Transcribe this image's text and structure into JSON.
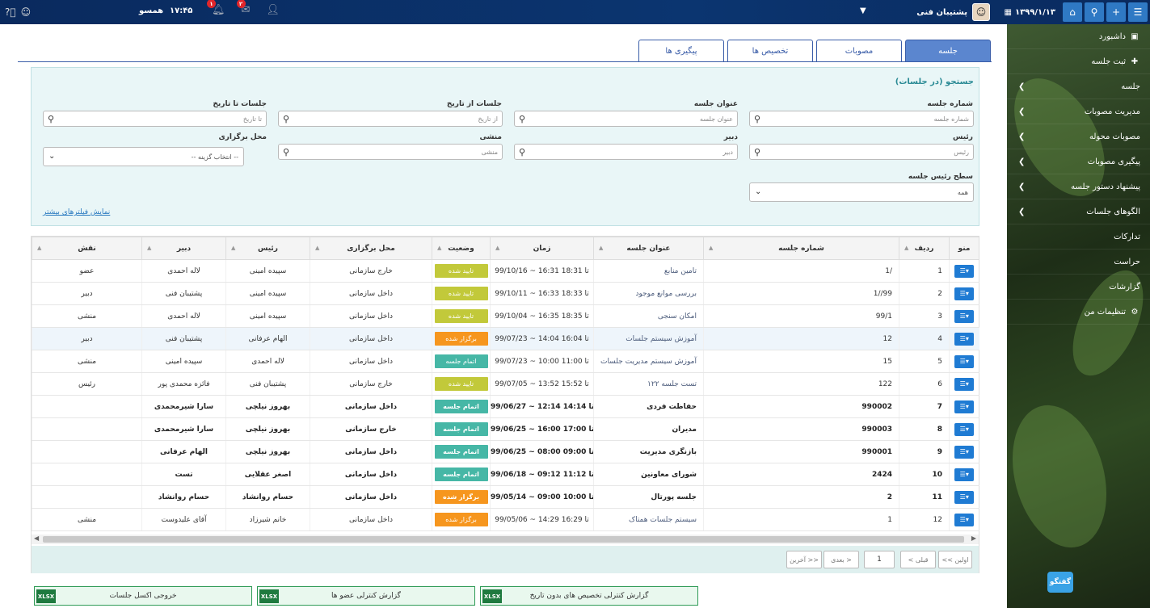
{
  "topbar": {
    "date": "۱۳۹۹/۱/۱۳",
    "user_name": "پشتیبان فنی",
    "time": "۱۷:۴۵",
    "workspace": "همسو",
    "notif_count": "۲",
    "alert_count": "۱"
  },
  "sidebar": {
    "items": [
      {
        "label": "داشبورد",
        "icon": "dashboard-icon"
      },
      {
        "label": "ثبت جلسه",
        "icon": "plus-icon"
      },
      {
        "label": "جلسه"
      },
      {
        "label": "مدیریت مصوبات"
      },
      {
        "label": "مصوبات محوله"
      },
      {
        "label": "پیگیری مصوبات"
      },
      {
        "label": "پیشنهاد دستور جلسه"
      },
      {
        "label": "الگوهای جلسات"
      },
      {
        "label": "تدارکات"
      },
      {
        "label": "حراست"
      },
      {
        "label": "گزارشات"
      },
      {
        "label": "تنظیمات من",
        "icon": "gears-icon"
      }
    ]
  },
  "chat_label": "گفتگو",
  "tabs": [
    "جلسه",
    "مصوبات",
    "تخصیص ها",
    "پیگیری ها"
  ],
  "search": {
    "title": "جستجو (در جلسات)",
    "meeting_number": {
      "label": "شماره جلسه",
      "placeholder": "شماره جلسه"
    },
    "meeting_title": {
      "label": "عنوان جلسه",
      "placeholder": "عنوان جلسه"
    },
    "from_date": {
      "label": "جلسات از تاریخ",
      "placeholder": "از تاریخ"
    },
    "to_date": {
      "label": "جلسات تا تاریخ",
      "placeholder": "تا تاریخ"
    },
    "chair": {
      "label": "رئیس",
      "placeholder": "رئیس"
    },
    "secretary": {
      "label": "دبیر",
      "placeholder": "دبیر"
    },
    "clerk": {
      "label": "منشی",
      "placeholder": "منشی"
    },
    "venue": {
      "label": "محل برگزاری",
      "value": "-- انتخاب گزینه --"
    },
    "chair_level": {
      "label": "سطح رئیس جلسه",
      "value": "همه"
    },
    "more_filters": "نمایش فیلترهای بیشتر"
  },
  "grid": {
    "headers": [
      "منو",
      "ردیف",
      "شماره جلسه",
      "عنوان جلسه",
      "زمان",
      "وضعیت",
      "محل برگزاری",
      "رئیس",
      "دبیر",
      "نقش"
    ],
    "rows": [
      {
        "row": "1",
        "num": "1/",
        "title": "تامین منابع",
        "time": "99/10/16 ~ 16:31 تا 18:31",
        "status": "تایید شده",
        "venue": "خارج سازمانی",
        "chair": "سپیده امینی",
        "secretary": "لاله احمدی",
        "role": "عضو",
        "bold": false
      },
      {
        "row": "2",
        "num": "1//99",
        "title": "بررسی موانع موجود",
        "time": "99/10/11 ~ 16:33 تا 18:33",
        "status": "تایید شده",
        "venue": "داخل سازمانی",
        "chair": "سپیده امینی",
        "secretary": "پشتیبان فنی",
        "role": "دبیر",
        "bold": false
      },
      {
        "row": "3",
        "num": "99/1",
        "title": "امکان سنجی",
        "time": "99/10/04 ~ 16:35 تا 18:35",
        "status": "تایید شده",
        "venue": "داخل سازمانی",
        "chair": "سپیده امینی",
        "secretary": "لاله احمدی",
        "role": "منشی",
        "bold": false
      },
      {
        "row": "4",
        "num": "12",
        "title": "آموزش سیستم جلسات",
        "time": "99/07/23 ~ 14:04 تا 16:04",
        "status": "برگزار شده",
        "venue": "داخل سازمانی",
        "chair": "الهام عرفانی",
        "secretary": "پشتیبان فنی",
        "role": "دبیر",
        "bold": false,
        "hl": true
      },
      {
        "row": "5",
        "num": "15",
        "title": "آموزش سیستم مدیریت جلسات",
        "time": "99/07/23 ~ 10:00 تا 11:00",
        "status": "اتمام جلسه",
        "venue": "داخل سازمانی",
        "chair": "لاله احمدی",
        "secretary": "سپیده امینی",
        "role": "منشی",
        "bold": false
      },
      {
        "row": "6",
        "num": "122",
        "title": "تست جلسه ۱۲۲",
        "time": "99/07/05 ~ 13:52 تا 15:52",
        "status": "تایید شده",
        "venue": "خارج سازمانی",
        "chair": "پشتیبان فنی",
        "secretary": "فائزه محمدی پور",
        "role": "رئیس",
        "bold": false
      },
      {
        "row": "7",
        "num": "990002",
        "title": "حفاظت فردی",
        "time": "99/06/27 ~ 12:14 تا 14:14",
        "status": "اتمام جلسه",
        "venue": "داخل سازمانی",
        "chair": "بهروز نیلچی",
        "secretary": "سارا شیرمحمدی",
        "role": "",
        "bold": true
      },
      {
        "row": "8",
        "num": "990003",
        "title": "مدیران",
        "time": "99/06/25 ~ 16:00 تا 17:00",
        "status": "اتمام جلسه",
        "venue": "خارج سازمانی",
        "chair": "بهروز نیلچی",
        "secretary": "سارا شیرمحمدی",
        "role": "",
        "bold": true
      },
      {
        "row": "9",
        "num": "990001",
        "title": "بازنگری مدیریت",
        "time": "99/06/25 ~ 08:00 تا 09:00",
        "status": "اتمام جلسه",
        "venue": "داخل سازمانی",
        "chair": "بهروز نیلچی",
        "secretary": "الهام عرفانی",
        "role": "",
        "bold": true
      },
      {
        "row": "10",
        "num": "2424",
        "title": "شورای معاونین",
        "time": "99/06/18 ~ 09:12 تا 11:12",
        "status": "اتمام جلسه",
        "venue": "داخل سازمانی",
        "chair": "اصغر عقلایی",
        "secretary": "تست",
        "role": "",
        "bold": true
      },
      {
        "row": "11",
        "num": "2",
        "title": "جلسه پورتال",
        "time": "99/05/14 ~ 09:00 تا 10:00",
        "status": "برگزار شده",
        "venue": "داخل سازمانی",
        "chair": "حسام روانشاد",
        "secretary": "حسام روانشاد",
        "role": "",
        "bold": true
      },
      {
        "row": "12",
        "num": "1",
        "title": "سیستم جلسات همتاک",
        "time": "99/05/06 ~ 14:29 تا 16:29",
        "status": "برگزار شده",
        "venue": "داخل سازمانی",
        "chair": "خانم شیرزاد",
        "secretary": "آقای علیدوست",
        "role": "منشی",
        "bold": false
      }
    ],
    "status_colors": {
      "تایید شده": "#c2c93a",
      "برگزار شده": "#f6961e",
      "اتمام جلسه": "#46b7a6"
    }
  },
  "pager": {
    "first": "<< اولین",
    "prev": "< قبلی",
    "page": "1",
    "next": "بعدی >",
    "last": "آخرین >>"
  },
  "exports": [
    {
      "label": "گزارش کنترلی تخصیص های بدون تاریخ",
      "badge": "XLSX"
    },
    {
      "label": "گزارش کنترلی عضو ها",
      "badge": "XLSX"
    },
    {
      "label": "خروجی اکسل جلسات",
      "badge": "XLSX"
    }
  ]
}
